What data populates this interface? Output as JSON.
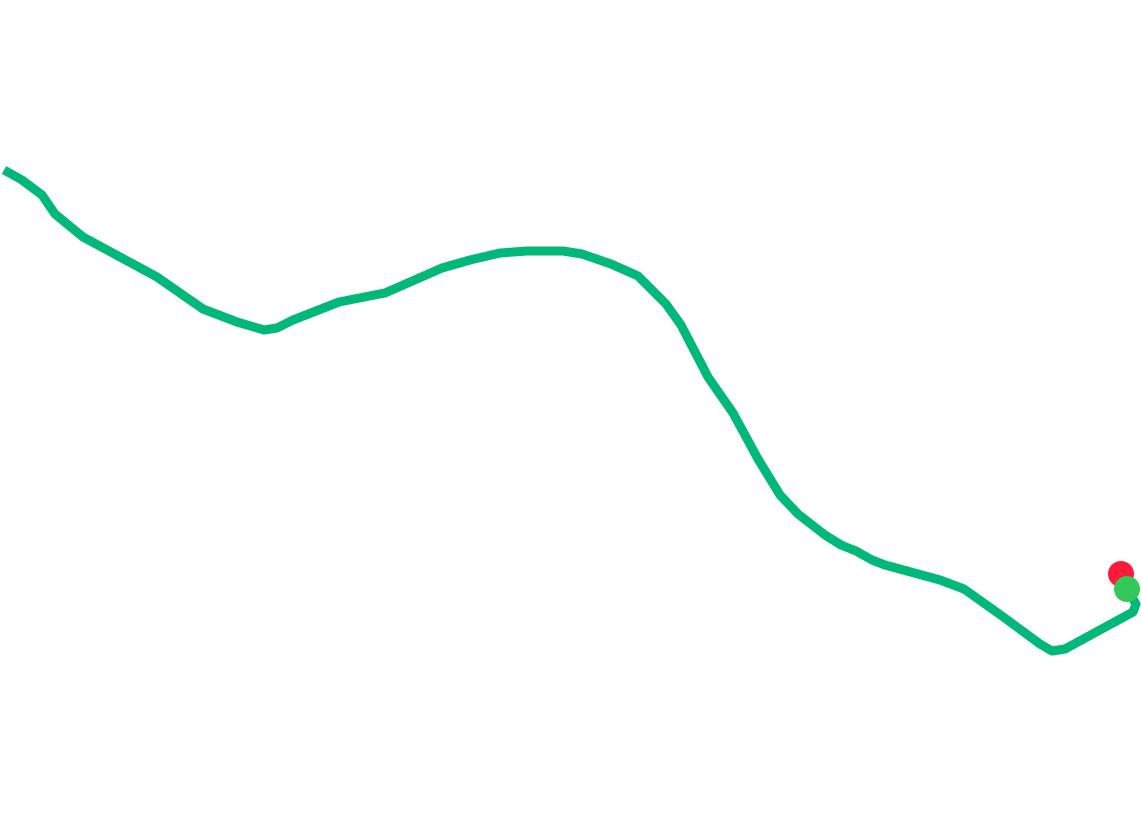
{
  "map": {
    "background": "#ffffff",
    "route": {
      "color": "#00b877"
    },
    "markers": {
      "start": {
        "icon": "start-marker-icon",
        "color": "#ff1a3a"
      },
      "end": {
        "icon": "end-marker-icon",
        "color": "#34c759"
      }
    }
  }
}
